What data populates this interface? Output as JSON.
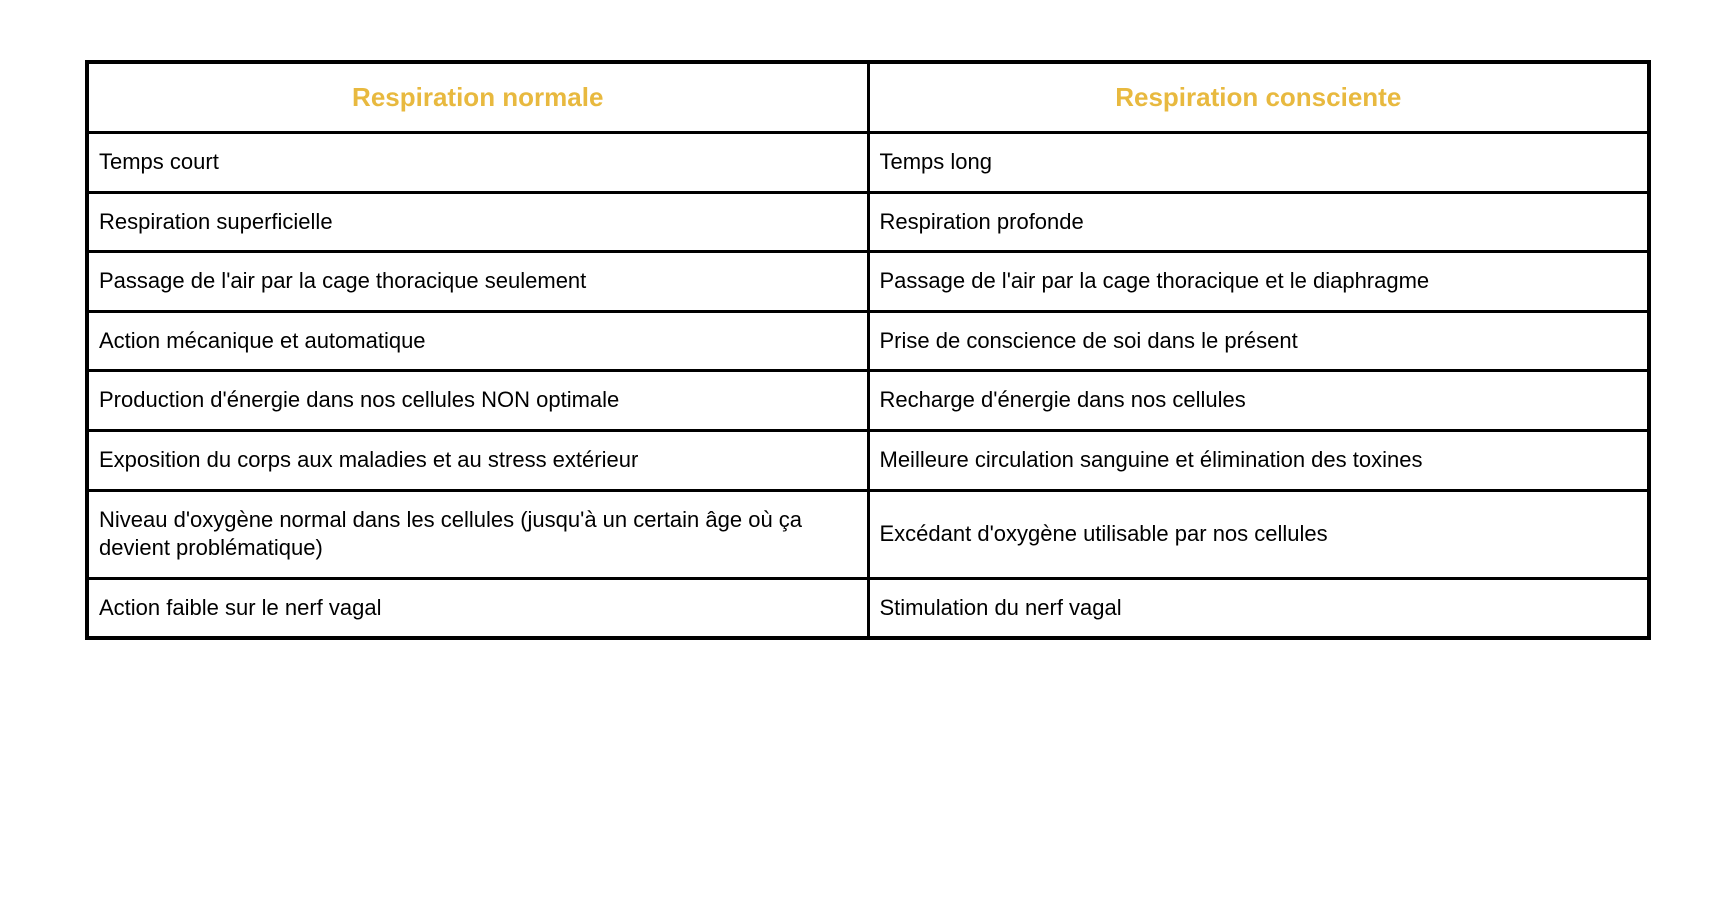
{
  "table": {
    "type": "table",
    "columns": [
      "Respiration normale",
      "Respiration consciente"
    ],
    "rows": [
      [
        "Temps court",
        "Temps long"
      ],
      [
        "Respiration superficielle",
        "Respiration profonde"
      ],
      [
        "Passage de l'air par la cage thoracique seulement",
        "Passage de l'air par la cage thoracique et le diaphragme"
      ],
      [
        "Action mécanique et automatique",
        "Prise de conscience de soi dans le présent"
      ],
      [
        "Production d'énergie dans nos cellules NON optimale",
        "Recharge d'énergie dans nos cellules"
      ],
      [
        "Exposition du corps aux maladies et au stress extérieur",
        "Meilleure circulation sanguine et élimination des toxines"
      ],
      [
        "Niveau d'oxygène normal dans les cellules (jusqu'à un certain âge où ça devient problématique)",
        "Excédant d'oxygène utilisable par nos cellules"
      ],
      [
        "Action faible sur le nerf vagal",
        "Stimulation du nerf vagal"
      ]
    ],
    "styling": {
      "header_color": "#e8b93f",
      "header_fontsize": 26,
      "header_fontweight": "bold",
      "cell_color": "#000000",
      "cell_fontsize": 22,
      "border_color": "#000000",
      "outer_border_width": 4,
      "inner_border_width": 3,
      "background_color": "#ffffff",
      "column_widths": [
        "50%",
        "50%"
      ],
      "header_align": "center",
      "cell_align": "left"
    }
  }
}
